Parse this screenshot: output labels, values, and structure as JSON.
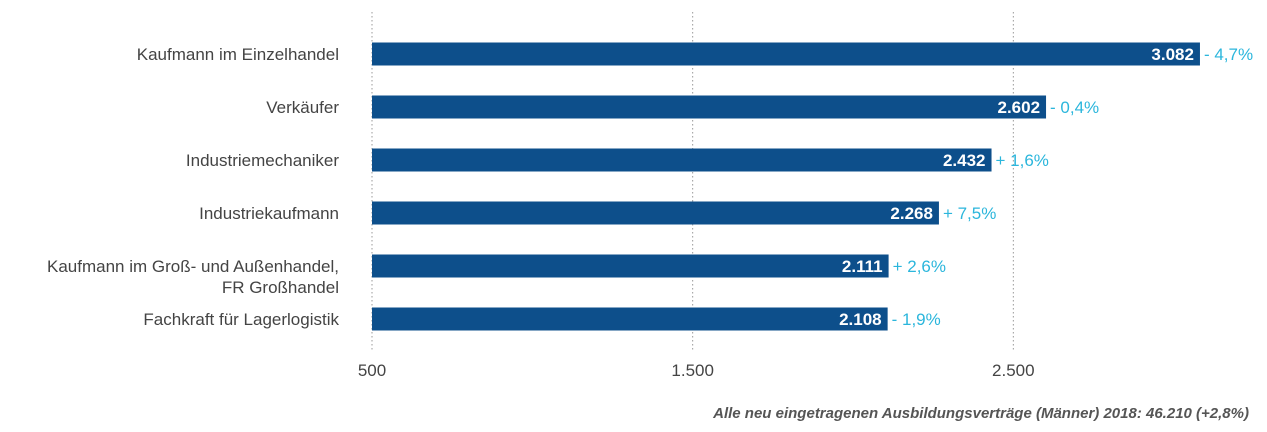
{
  "chart_data": {
    "type": "bar",
    "orientation": "horizontal",
    "categories": [
      [
        "Kaufmann im Einzelhandel"
      ],
      [
        "Verkäufer"
      ],
      [
        "Industriemechaniker"
      ],
      [
        "Industriekaufmann"
      ],
      [
        "Kaufmann im Groß- und Außenhandel,",
        "FR Großhandel"
      ],
      [
        "Fachkraft für Lagerlogistik"
      ]
    ],
    "values": [
      3082,
      2602,
      2432,
      2268,
      2111,
      2108
    ],
    "value_labels": [
      "3.082",
      "2.602",
      "2.432",
      "2.268",
      "2.111",
      "2.108"
    ],
    "change_labels": [
      "- 4,7%",
      "- 0,4%",
      "+ 1,6%",
      "+ 7,5%",
      "+ 2,6%",
      "- 1,9%"
    ],
    "x_ticks": [
      500,
      1500,
      2500
    ],
    "x_tick_labels": [
      "500",
      "1.500",
      "2.500"
    ],
    "xlim": [
      500,
      3500
    ],
    "grid": true,
    "footnote": "Alle neu eingetragenen Ausbildungsverträge (Männer) 2018: 46.210 (+2,8%)"
  },
  "colors": {
    "bar": "#0d4f8b",
    "change": "#2bb6dc",
    "grid": "#999999"
  }
}
